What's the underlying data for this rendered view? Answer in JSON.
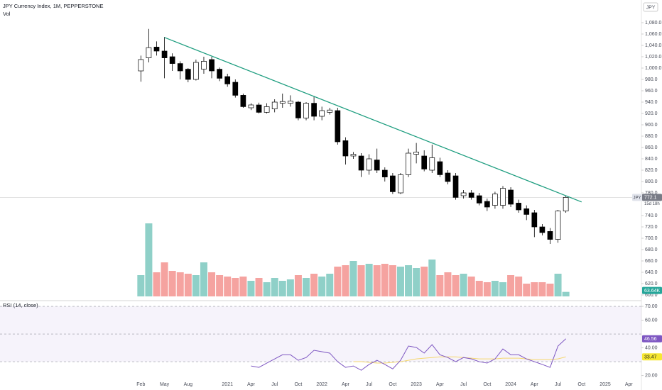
{
  "chart_data": {
    "type": "candlestick",
    "title": "JPY Currency Index, 1M, PEPPERSTONE",
    "volume_title": "Vol",
    "symbol": "JPY",
    "countdown": "15d 18h",
    "up_color": "#ffffff",
    "down_color": "#000000",
    "volume_up_color": "#8fd0c8",
    "volume_down_color": "#f5a3a0",
    "xlim": [
      -17.9,
      63.6
    ],
    "xticks": [
      {
        "value": 0,
        "label": "Feb"
      },
      {
        "value": 3,
        "label": "May"
      },
      {
        "value": 6,
        "label": "Aug"
      },
      {
        "value": 11,
        "label": "2021"
      },
      {
        "value": 14,
        "label": "Apr"
      },
      {
        "value": 17,
        "label": "Jul"
      },
      {
        "value": 20,
        "label": "Oct"
      },
      {
        "value": 23,
        "label": "2022"
      },
      {
        "value": 26,
        "label": "Apr"
      },
      {
        "value": 29,
        "label": "Jul"
      },
      {
        "value": 32,
        "label": "Oct"
      },
      {
        "value": 35,
        "label": "2023"
      },
      {
        "value": 38,
        "label": "Apr"
      },
      {
        "value": 41,
        "label": "Jul"
      },
      {
        "value": 44,
        "label": "Oct"
      },
      {
        "value": 47,
        "label": "2024"
      },
      {
        "value": 50,
        "label": "Apr"
      },
      {
        "value": 53,
        "label": "Jul"
      },
      {
        "value": 56,
        "label": "Oct"
      },
      {
        "value": 59,
        "label": "2025"
      },
      {
        "value": 62,
        "label": "Apr"
      }
    ],
    "ylim": [
      590,
      1120
    ],
    "yticks": [
      {
        "value": 1080,
        "label": "1,080.0"
      },
      {
        "value": 1060,
        "label": "1,060.0"
      },
      {
        "value": 1040,
        "label": "1,040.0"
      },
      {
        "value": 1020,
        "label": "1,020.0"
      },
      {
        "value": 1000,
        "label": "1,000.0"
      },
      {
        "value": 980,
        "label": "980.0"
      },
      {
        "value": 960,
        "label": "960.0"
      },
      {
        "value": 940,
        "label": "940.0"
      },
      {
        "value": 920,
        "label": "920.0"
      },
      {
        "value": 900,
        "label": "900.0"
      },
      {
        "value": 880,
        "label": "880.0"
      },
      {
        "value": 860,
        "label": "860.0"
      },
      {
        "value": 840,
        "label": "840.0"
      },
      {
        "value": 820,
        "label": "820.0"
      },
      {
        "value": 800,
        "label": "800.0"
      },
      {
        "value": 780,
        "label": "780.0"
      },
      {
        "value": 740,
        "label": "740.0"
      },
      {
        "value": 720,
        "label": "720.0"
      },
      {
        "value": 700,
        "label": "700.0"
      },
      {
        "value": 680,
        "label": "680.0"
      },
      {
        "value": 660,
        "label": "660.0"
      },
      {
        "value": 640,
        "label": "640.0"
      },
      {
        "value": 620,
        "label": "620.0"
      },
      {
        "value": 600,
        "label": "600.0"
      }
    ],
    "open": [
      995,
      1018,
      1037,
      1030,
      1020,
      1008,
      998,
      980,
      998,
      1015,
      998,
      985,
      975,
      952,
      930,
      935,
      922,
      928,
      938,
      938,
      940,
      912,
      938,
      915,
      922,
      925,
      872,
      845,
      845,
      820,
      838,
      820,
      810,
      780,
      812,
      848,
      845,
      820,
      835,
      815,
      810,
      775,
      780,
      775,
      765,
      758,
      758,
      785,
      762,
      752,
      745,
      720,
      712,
      698,
      748
    ],
    "high": [
      1022,
      1069,
      1047,
      1055,
      1026,
      1012,
      1000,
      1015,
      1020,
      1020,
      1001,
      990,
      980,
      955,
      938,
      939,
      938,
      945,
      955,
      952,
      942,
      940,
      950,
      932,
      930,
      930,
      878,
      852,
      850,
      848,
      858,
      825,
      815,
      815,
      858,
      868,
      855,
      865,
      842,
      820,
      815,
      785,
      785,
      780,
      770,
      782,
      792,
      790,
      768,
      758,
      750,
      725,
      718,
      750,
      775
    ],
    "low": [
      976,
      1010,
      1022,
      982,
      995,
      980,
      975,
      978,
      990,
      982,
      977,
      967,
      948,
      930,
      926,
      920,
      920,
      922,
      930,
      932,
      908,
      908,
      908,
      908,
      918,
      865,
      830,
      840,
      808,
      812,
      815,
      800,
      778,
      778,
      808,
      832,
      818,
      815,
      808,
      795,
      768,
      770,
      768,
      758,
      748,
      752,
      752,
      755,
      745,
      732,
      702,
      705,
      690,
      692,
      745
    ],
    "close": [
      1015,
      1036,
      1030,
      1018,
      1008,
      995,
      980,
      1010,
      1012,
      995,
      982,
      972,
      952,
      932,
      935,
      922,
      932,
      940,
      941,
      942,
      912,
      938,
      915,
      925,
      926,
      870,
      845,
      848,
      820,
      840,
      820,
      808,
      782,
      812,
      850,
      852,
      822,
      842,
      812,
      800,
      772,
      780,
      772,
      762,
      755,
      778,
      788,
      760,
      750,
      742,
      720,
      710,
      698,
      748,
      772.1
    ],
    "volume": [
      300,
      1030,
      340,
      480,
      360,
      340,
      320,
      300,
      480,
      340,
      300,
      280,
      260,
      280,
      220,
      260,
      200,
      260,
      220,
      240,
      300,
      260,
      320,
      280,
      320,
      420,
      440,
      500,
      440,
      460,
      440,
      460,
      440,
      420,
      440,
      400,
      420,
      520,
      300,
      340,
      300,
      320,
      280,
      220,
      200,
      220,
      200,
      300,
      280,
      180,
      200,
      200,
      180,
      320,
      63.64
    ],
    "volume_lim": [
      0,
      1280
    ],
    "volume_value_label": "63.64K",
    "trendline": {
      "color": "#1f9e80",
      "points": [
        {
          "x": 3,
          "y": 1054
        },
        {
          "x": 56,
          "y": 764
        }
      ]
    },
    "rsi": {
      "title": "RSI (14, close)",
      "color": "#7e57c2",
      "ma_color": "#f5d76e",
      "ylim": [
        16.7,
        73.1
      ],
      "yticks": [
        {
          "value": 70,
          "label": "70.00"
        },
        {
          "value": 60,
          "label": "60.00"
        },
        {
          "value": 40,
          "label": "40.00"
        },
        {
          "value": 20,
          "label": "20.00"
        }
      ],
      "bands": [
        70,
        50,
        30
      ],
      "values": [
        null,
        null,
        null,
        null,
        null,
        null,
        null,
        null,
        null,
        null,
        null,
        null,
        null,
        null,
        26.9,
        25.9,
        29,
        32,
        35,
        35,
        31,
        33,
        38.2,
        37.2,
        36.2,
        30,
        25.9,
        26.9,
        23.8,
        28,
        31,
        28,
        24.8,
        31,
        41.3,
        40.3,
        36.2,
        42.3,
        35,
        33,
        30,
        33,
        32,
        30,
        29,
        32,
        39.2,
        35,
        35,
        32,
        30,
        28,
        25.9,
        41.3,
        46.56
      ],
      "ma_values": [
        null,
        null,
        null,
        null,
        null,
        null,
        null,
        null,
        null,
        null,
        null,
        null,
        null,
        null,
        null,
        null,
        null,
        null,
        null,
        null,
        null,
        null,
        null,
        null,
        null,
        null,
        null,
        30,
        30,
        29.5,
        29,
        29,
        29.5,
        30,
        31,
        32,
        32.5,
        33,
        33.5,
        33.5,
        33.5,
        33,
        32.5,
        32,
        32,
        32,
        32.5,
        32.5,
        32.5,
        32,
        31.5,
        31.5,
        31.5,
        32,
        33.47
      ]
    }
  }
}
